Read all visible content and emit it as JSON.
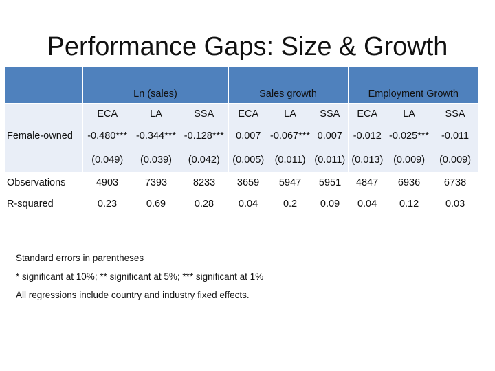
{
  "title": "Performance Gaps: Size & Growth",
  "table": {
    "groups": [
      "Ln (sales)",
      "Sales growth",
      "Employment Growth"
    ],
    "subheaders": [
      "ECA",
      "LA",
      "SSA",
      "ECA",
      "LA",
      "SSA",
      "ECA",
      "LA",
      "SSA"
    ],
    "rows": [
      {
        "label": "Female-owned",
        "values": [
          "-0.480***",
          "-0.344***",
          "-0.128***",
          "0.007",
          "-0.067***",
          "0.007",
          "-0.012",
          "-0.025***",
          "-0.011"
        ]
      },
      {
        "label": "",
        "values": [
          "(0.049)",
          "(0.039)",
          "(0.042)",
          "(0.005)",
          "(0.011)",
          "(0.011)",
          "(0.013)",
          "(0.009)",
          "(0.009)"
        ]
      },
      {
        "label": "Observations",
        "values": [
          "4903",
          "7393",
          "8233",
          "3659",
          "5947",
          "5951",
          "4847",
          "6936",
          "6738"
        ]
      },
      {
        "label": "R-squared",
        "values": [
          "0.23",
          "0.69",
          "0.28",
          "0.04",
          "0.2",
          "0.09",
          "0.04",
          "0.12",
          "0.03"
        ]
      }
    ]
  },
  "notes": [
    "Standard errors in parentheses",
    "* significant at 10%; ** significant at 5%; *** significant at 1%",
    "All regressions include country and industry fixed effects."
  ]
}
